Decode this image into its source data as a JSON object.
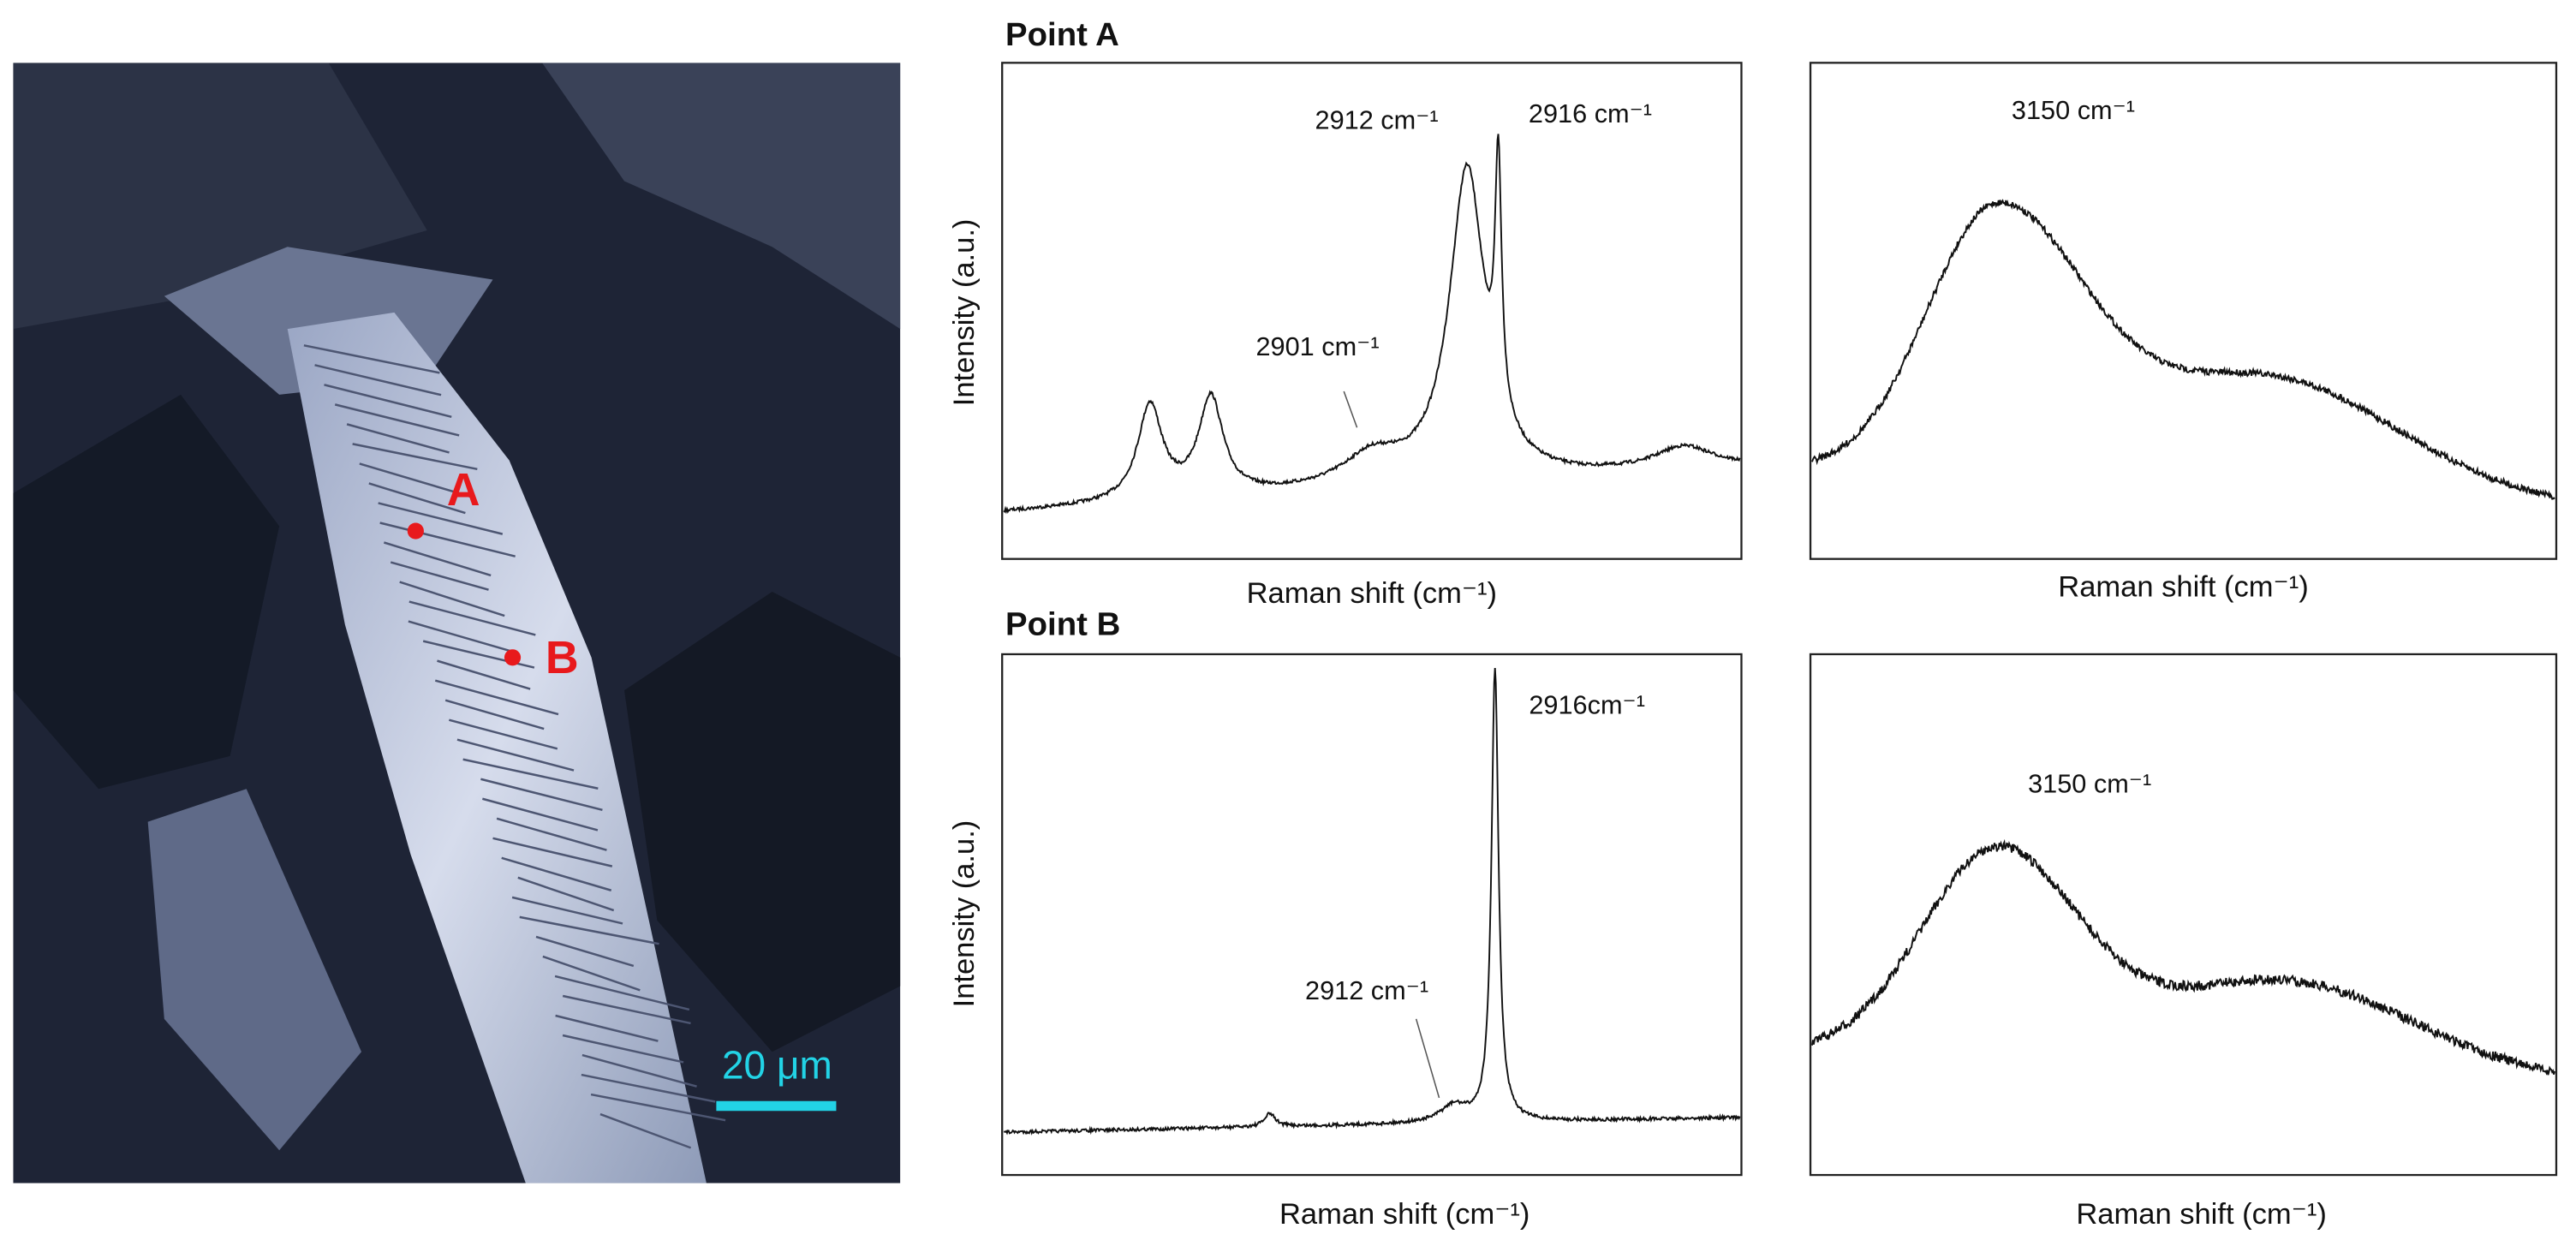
{
  "image": {
    "labels": [
      "A",
      "B"
    ],
    "scale_bar": "20 μm"
  },
  "panels": [
    {
      "title": "Point A",
      "spectra": [
        {
          "y_label": "Intensity (a.u.)",
          "x_label": "Raman shift (cm⁻¹)",
          "annotations": [
            "2912 cm⁻¹",
            "2916 cm⁻¹",
            "2901 cm⁻¹"
          ]
        },
        {
          "x_label": "Raman shift (cm⁻¹)",
          "annotations": [
            "3150 cm⁻¹"
          ]
        }
      ]
    },
    {
      "title": "Point B",
      "spectra": [
        {
          "y_label": "Intensity (a.u.)",
          "x_label": "Raman shift (cm⁻¹)",
          "annotations": [
            "2916cm⁻¹",
            "2912 cm⁻¹"
          ]
        },
        {
          "x_label": "Raman shift (cm⁻¹)",
          "annotations": [
            "3150 cm⁻¹"
          ]
        }
      ]
    }
  ]
}
